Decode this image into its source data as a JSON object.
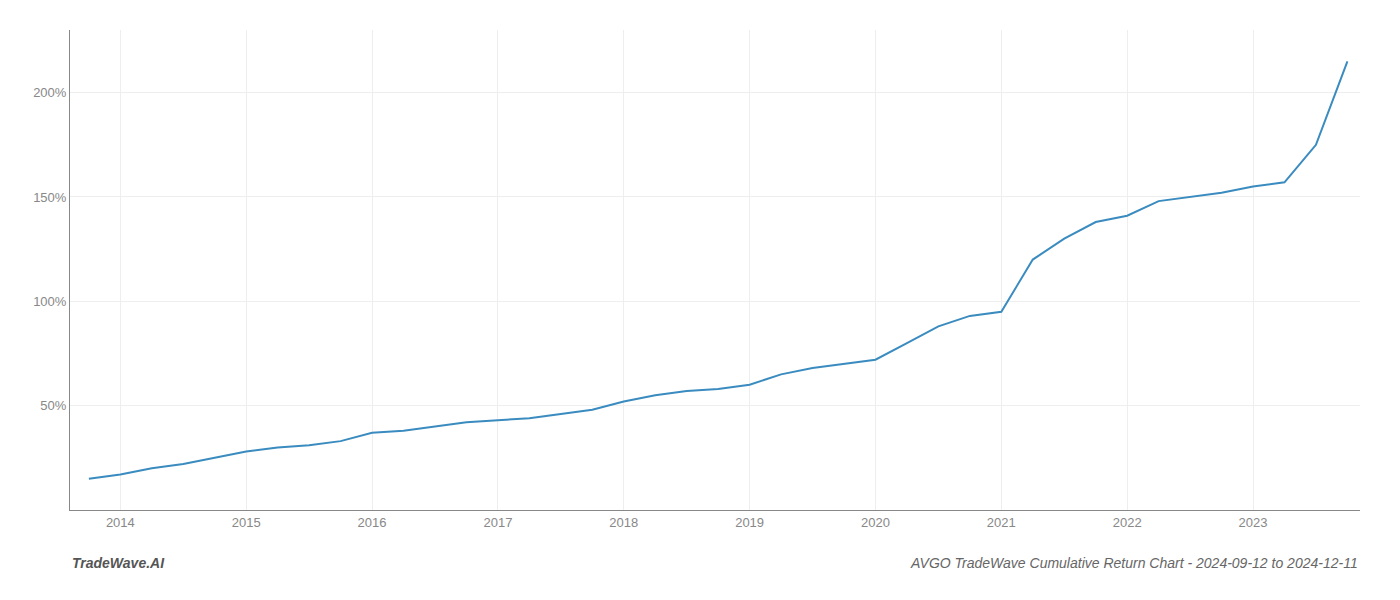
{
  "chart_data": {
    "type": "line",
    "title": "AVGO TradeWave Cumulative Return Chart - 2024-09-12 to 2024-12-11",
    "annotations": [
      "TradeWave.AI"
    ],
    "x": [
      2013.75,
      2014.0,
      2014.25,
      2014.5,
      2014.75,
      2015.0,
      2015.25,
      2015.5,
      2015.75,
      2016.0,
      2016.25,
      2016.5,
      2016.75,
      2017.0,
      2017.25,
      2017.5,
      2017.75,
      2018.0,
      2018.25,
      2018.5,
      2018.75,
      2019.0,
      2019.25,
      2019.5,
      2019.75,
      2020.0,
      2020.25,
      2020.5,
      2020.75,
      2021.0,
      2021.25,
      2021.5,
      2021.75,
      2022.0,
      2022.25,
      2022.5,
      2022.75,
      2023.0,
      2023.25,
      2023.5,
      2023.75
    ],
    "values": [
      15,
      17,
      20,
      22,
      25,
      28,
      30,
      31,
      33,
      37,
      38,
      40,
      42,
      43,
      44,
      46,
      48,
      52,
      55,
      57,
      58,
      60,
      65,
      68,
      70,
      72,
      80,
      88,
      93,
      95,
      120,
      130,
      138,
      141,
      148,
      150,
      152,
      155,
      157,
      175,
      215
    ],
    "color": "#3a8bbf",
    "xlim": [
      2013.6,
      2023.85
    ],
    "xticks": [
      2014,
      2015,
      2016,
      2017,
      2018,
      2019,
      2020,
      2021,
      2022,
      2023
    ],
    "ylim": [
      0,
      230
    ],
    "yticks": [
      {
        "value": 50,
        "label": "50%"
      },
      {
        "value": 100,
        "label": "100%"
      },
      {
        "value": 150,
        "label": "150%"
      },
      {
        "value": 200,
        "label": "200%"
      }
    ],
    "grid": true
  }
}
